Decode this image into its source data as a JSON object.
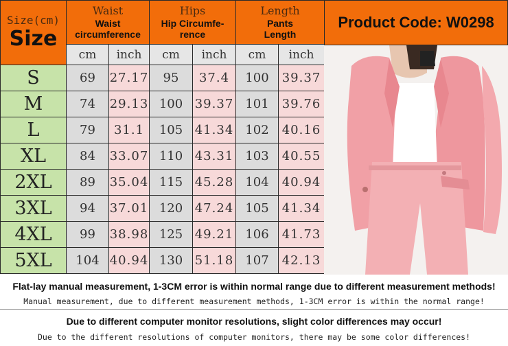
{
  "table": {
    "size_header_top": "Size(cm)",
    "size_header_bottom": "Size",
    "columns": [
      {
        "top": "Waist",
        "bottom_line1": "Waist",
        "bottom_line2": "circumference"
      },
      {
        "top": "Hips",
        "bottom_line1": "Hip Circumfe-",
        "bottom_line2": "rence"
      },
      {
        "top": "Length",
        "bottom_line1": "Pants",
        "bottom_line2": "Length"
      }
    ],
    "unit_cm": "cm",
    "unit_inch": "inch",
    "rows": [
      {
        "size": "S",
        "waist_cm": "69",
        "waist_in": "27.17",
        "hip_cm": "95",
        "hip_in": "37.4",
        "len_cm": "100",
        "len_in": "39.37"
      },
      {
        "size": "M",
        "waist_cm": "74",
        "waist_in": "29.13",
        "hip_cm": "100",
        "hip_in": "39.37",
        "len_cm": "101",
        "len_in": "39.76"
      },
      {
        "size": "L",
        "waist_cm": "79",
        "waist_in": "31.1",
        "hip_cm": "105",
        "hip_in": "41.34",
        "len_cm": "102",
        "len_in": "40.16"
      },
      {
        "size": "XL",
        "waist_cm": "84",
        "waist_in": "33.07",
        "hip_cm": "110",
        "hip_in": "43.31",
        "len_cm": "103",
        "len_in": "40.55"
      },
      {
        "size": "2XL",
        "waist_cm": "89",
        "waist_in": "35.04",
        "hip_cm": "115",
        "hip_in": "45.28",
        "len_cm": "104",
        "len_in": "40.94"
      },
      {
        "size": "3XL",
        "waist_cm": "94",
        "waist_in": "37.01",
        "hip_cm": "120",
        "hip_in": "47.24",
        "len_cm": "105",
        "len_in": "41.34"
      },
      {
        "size": "4XL",
        "waist_cm": "99",
        "waist_in": "38.98",
        "hip_cm": "125",
        "hip_in": "49.21",
        "len_cm": "106",
        "len_in": "41.73"
      },
      {
        "size": "5XL",
        "waist_cm": "104",
        "waist_in": "40.94",
        "hip_cm": "130",
        "hip_in": "51.18",
        "len_cm": "107",
        "len_in": "42.13"
      }
    ]
  },
  "product_code": "Product Code: W0298",
  "notes": {
    "measure_en": "Flat-lay manual measurement, 1-3CM error is within normal range due to different measurement methods!",
    "measure_alt": "Manual measurement, due to different measurement methods, 1-3CM error is within the normal range!",
    "color_en": "Due to different computer monitor resolutions, slight color differences may occur!",
    "color_alt": "Due to the different resolutions of computer monitors, there may be some color differences!"
  },
  "colors": {
    "header_orange": "#f26d0a",
    "size_green": "#c7e3a9",
    "cm_gray": "#dcdcdc",
    "inch_pink": "#f7d9d9",
    "suit_pink": "#f1a0a6"
  }
}
